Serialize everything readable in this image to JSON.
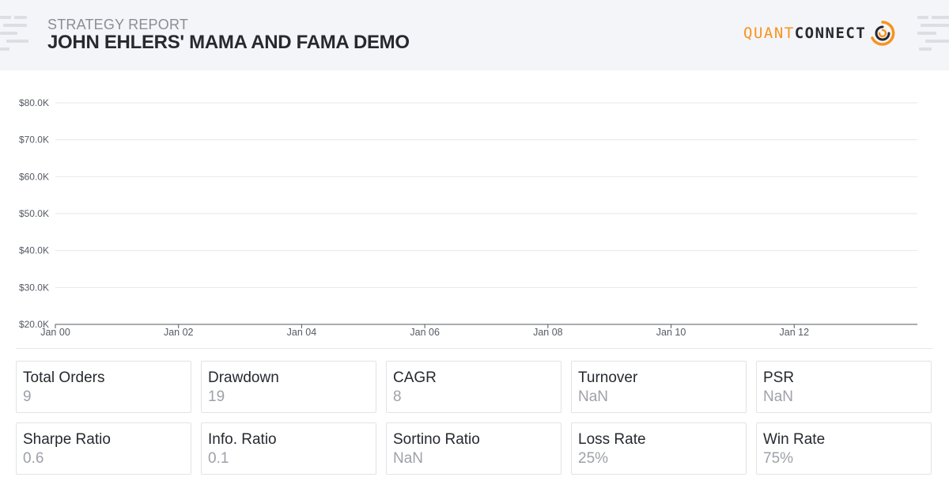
{
  "header": {
    "subtitle": "STRATEGY REPORT",
    "title": "JOHN EHLERS' MAMA AND FAMA DEMO",
    "logo": {
      "quant": "QUANT",
      "connect": "CONNECT",
      "accent": "#f7931e",
      "dark": "#26292f"
    }
  },
  "chart_data": {
    "type": "line",
    "title": "",
    "xlabel": "",
    "ylabel": "",
    "x_ticks": [
      "Jan 00",
      "Jan 02",
      "Jan 04",
      "Jan 06",
      "Jan 08",
      "Jan 10",
      "Jan 12"
    ],
    "x_range": [
      0,
      14
    ],
    "y_ticks": [
      20000,
      30000,
      40000,
      50000,
      60000,
      70000,
      80000
    ],
    "y_tick_labels": [
      "$20.0K",
      "$30.0K",
      "$40.0K",
      "$50.0K",
      "$60.0K",
      "$70.0K",
      "$80.0K"
    ],
    "ylim": [
      20000,
      80000
    ],
    "grid": true,
    "series": []
  },
  "stats": [
    {
      "label": "Total Orders",
      "value": "9"
    },
    {
      "label": "Drawdown",
      "value": "19"
    },
    {
      "label": "CAGR",
      "value": "8"
    },
    {
      "label": "Turnover",
      "value": "NaN"
    },
    {
      "label": "PSR",
      "value": "NaN"
    },
    {
      "label": "Sharpe Ratio",
      "value": "0.6"
    },
    {
      "label": "Info. Ratio",
      "value": "0.1"
    },
    {
      "label": "Sortino Ratio",
      "value": "NaN"
    },
    {
      "label": "Loss Rate",
      "value": "25%"
    },
    {
      "label": "Win Rate",
      "value": "75%"
    }
  ]
}
